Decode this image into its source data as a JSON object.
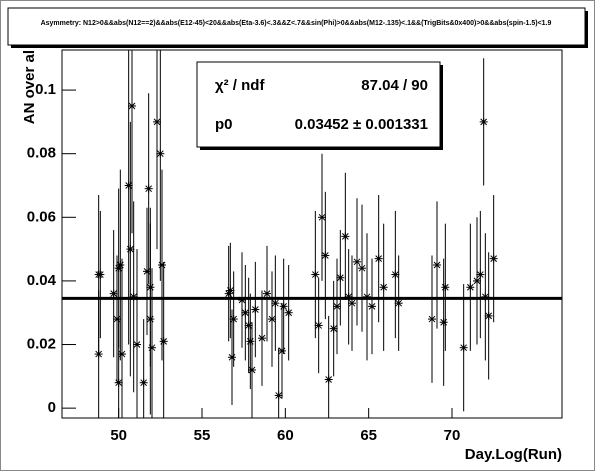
{
  "chart_data": {
    "type": "errorbar-scatter",
    "title": "Asymmetry: N12>0&&abs(N12==2)&&abs(E12-45)<20&&abs(Eta-3.6)<.3&&Z<.7&&sin(Phi)>0&&abs(M12-.135)<.1&&(TrigBits&0x400)>0&&abs(spin-1.5)<1.9",
    "x_label": "Day.Log(Run)",
    "y_label": "AN over al",
    "xlim": [
      46.6,
      76.6
    ],
    "ylim": [
      -0.0031,
      0.1126
    ],
    "xticks": [
      50,
      55,
      60,
      65,
      70
    ],
    "yticks": [
      0,
      0.02,
      0.04,
      0.06,
      0.08,
      0.1
    ],
    "x": [
      48.8,
      48.8,
      48.9,
      49.7,
      49.9,
      50.0,
      50.0,
      50.1,
      50.2,
      50.6,
      50.7,
      50.8,
      50.9,
      51.1,
      51.5,
      51.7,
      51.8,
      51.9,
      51.9,
      52.0,
      52.3,
      52.5,
      52.6,
      52.7,
      56.6,
      56.7,
      56.8,
      56.9,
      57.4,
      57.6,
      57.8,
      57.9,
      58.0,
      58.2,
      58.6,
      58.9,
      59.2,
      59.4,
      59.6,
      59.8,
      59.9,
      60.2,
      61.8,
      62.0,
      62.2,
      62.4,
      62.6,
      62.9,
      63.1,
      63.3,
      63.6,
      63.8,
      64.0,
      64.3,
      64.6,
      64.9,
      65.2,
      65.6,
      65.9,
      66.6,
      66.8,
      68.8,
      69.1,
      69.5,
      69.6,
      70.7,
      71.1,
      71.5,
      71.7,
      71.9,
      72.0,
      72.2,
      72.5
    ],
    "series": [
      {
        "color": "#000000",
        "values": [
          0.017,
          0.042,
          0.042,
          0.036,
          0.028,
          0.008,
          0.044,
          0.045,
          0.017,
          0.07,
          0.05,
          0.095,
          0.035,
          0.02,
          0.008,
          0.043,
          0.069,
          0.028,
          0.038,
          0.019,
          0.09,
          0.08,
          0.045,
          0.021,
          0.036,
          0.037,
          0.016,
          0.028,
          0.034,
          0.03,
          0.026,
          0.021,
          0.012,
          0.031,
          0.022,
          0.036,
          0.028,
          0.033,
          0.004,
          0.018,
          0.032,
          0.03,
          0.042,
          0.026,
          0.06,
          0.048,
          0.009,
          0.025,
          0.032,
          0.041,
          0.054,
          0.035,
          0.033,
          0.046,
          0.044,
          0.035,
          0.032,
          0.047,
          0.038,
          0.042,
          0.033,
          0.028,
          0.045,
          0.027,
          0.038,
          0.019,
          0.038,
          0.04,
          0.042,
          0.09,
          0.035,
          0.029,
          0.047
        ],
        "errors": [
          0.02,
          0.025,
          0.02,
          0.02,
          0.02,
          0.02,
          0.025,
          0.03,
          0.03,
          0.05,
          0.04,
          0.04,
          0.03,
          0.03,
          0.02,
          0.02,
          0.03,
          0.03,
          0.025,
          0.025,
          0.04,
          0.04,
          0.03,
          0.025,
          0.015,
          0.015,
          0.015,
          0.015,
          0.015,
          0.015,
          0.015,
          0.015,
          0.015,
          0.015,
          0.015,
          0.015,
          0.015,
          0.015,
          0.015,
          0.015,
          0.015,
          0.015,
          0.02,
          0.015,
          0.02,
          0.02,
          0.02,
          0.015,
          0.015,
          0.015,
          0.02,
          0.015,
          0.015,
          0.02,
          0.02,
          0.02,
          0.015,
          0.02,
          0.02,
          0.02,
          0.015,
          0.02,
          0.02,
          0.02,
          0.02,
          0.02,
          0.02,
          0.02,
          0.02,
          0.02,
          0.02,
          0.02,
          0.02
        ]
      }
    ],
    "fit": {
      "value": 0.03452,
      "color": "#000000"
    },
    "stats": [
      {
        "label": "χ² / ndf",
        "value": "87.04 / 90"
      },
      {
        "label": "p0",
        "value": "0.03452 ± 0.001331"
      }
    ]
  }
}
